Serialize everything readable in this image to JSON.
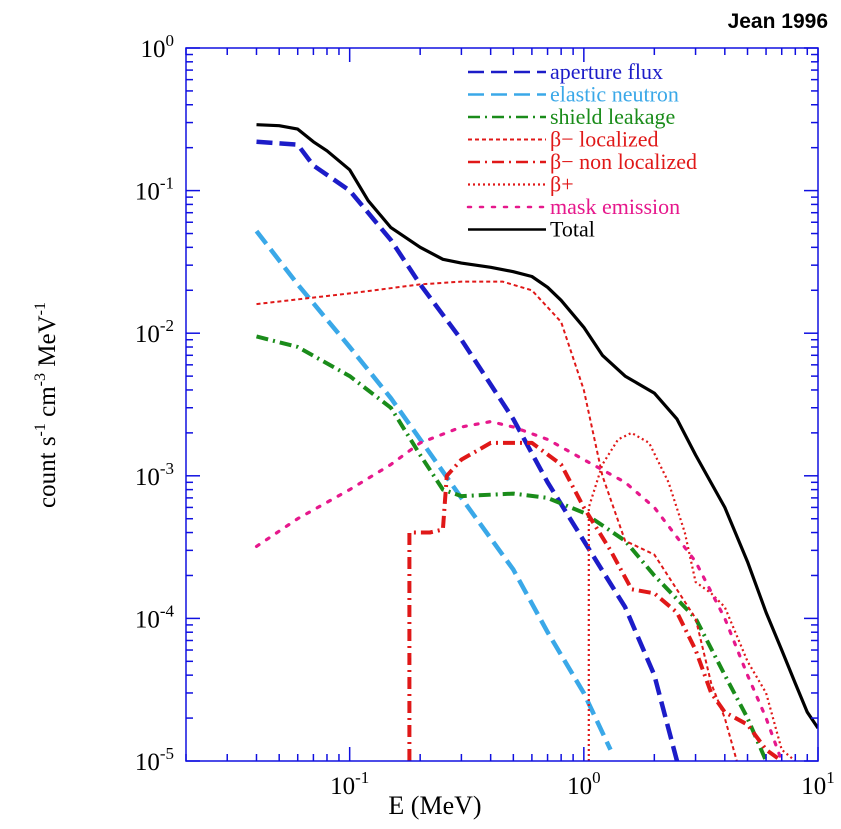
{
  "chart_data": {
    "type": "line",
    "title": "Jean 1996",
    "xlabel": "E (MeV)",
    "ylabel": "count s-1 cm-3 MeV-1",
    "x_scale": "log",
    "y_scale": "log",
    "xlim": [
      0.02,
      10
    ],
    "ylim": [
      1e-05,
      1
    ],
    "x_ticks": [
      {
        "value": 0.1,
        "base": "10",
        "exp": "-1"
      },
      {
        "value": 1,
        "base": "10",
        "exp": "0"
      },
      {
        "value": 10,
        "base": "10",
        "exp": "1"
      }
    ],
    "y_ticks": [
      {
        "value": 1,
        "base": "10",
        "exp": "0"
      },
      {
        "value": 0.1,
        "base": "10",
        "exp": "-1"
      },
      {
        "value": 0.01,
        "base": "10",
        "exp": "-2"
      },
      {
        "value": 0.001,
        "base": "10",
        "exp": "-3"
      },
      {
        "value": 0.0001,
        "base": "10",
        "exp": "-4"
      },
      {
        "value": 1e-05,
        "base": "10",
        "exp": "-5"
      }
    ],
    "grid": false,
    "legend_position": "top-right",
    "series": [
      {
        "name": "aperture flux",
        "color": "#1c1cc8",
        "dash": "long-dash",
        "points": [
          [
            0.04,
            0.22
          ],
          [
            0.06,
            0.21
          ],
          [
            0.07,
            0.15
          ],
          [
            0.1,
            0.1
          ],
          [
            0.15,
            0.045
          ],
          [
            0.2,
            0.022
          ],
          [
            0.3,
            0.009
          ],
          [
            0.5,
            0.0025
          ],
          [
            0.7,
            0.0009
          ],
          [
            1.0,
            0.00035
          ],
          [
            1.5,
            0.00012
          ],
          [
            2.0,
            4e-05
          ],
          [
            2.5,
            1e-05
          ]
        ]
      },
      {
        "name": "elastic neutron",
        "color": "#3aa8e8",
        "dash": "long-dash",
        "points": [
          [
            0.04,
            0.052
          ],
          [
            0.06,
            0.022
          ],
          [
            0.1,
            0.008
          ],
          [
            0.15,
            0.0035
          ],
          [
            0.2,
            0.0018
          ],
          [
            0.3,
            0.0007
          ],
          [
            0.5,
            0.00022
          ],
          [
            0.7,
            8e-05
          ],
          [
            1.0,
            3e-05
          ],
          [
            1.3,
            1.2e-05
          ]
        ]
      },
      {
        "name": "shield leakage",
        "color": "#1a8c1a",
        "dash": "dash-dot",
        "points": [
          [
            0.04,
            0.0095
          ],
          [
            0.06,
            0.008
          ],
          [
            0.1,
            0.005
          ],
          [
            0.15,
            0.003
          ],
          [
            0.2,
            0.0014
          ],
          [
            0.25,
            0.0008
          ],
          [
            0.3,
            0.00072
          ],
          [
            0.5,
            0.00075
          ],
          [
            0.7,
            0.0007
          ],
          [
            1.0,
            0.00055
          ],
          [
            1.5,
            0.00035
          ],
          [
            2.0,
            0.0002
          ],
          [
            3.0,
            0.0001
          ],
          [
            4.0,
            4e-05
          ],
          [
            5.0,
            2e-05
          ],
          [
            6.0,
            1e-05
          ]
        ]
      },
      {
        "name": "β− localized",
        "color": "#e01818",
        "dash": "short-dash",
        "points": [
          [
            0.04,
            0.016
          ],
          [
            0.1,
            0.019
          ],
          [
            0.2,
            0.022
          ],
          [
            0.3,
            0.023
          ],
          [
            0.45,
            0.023
          ],
          [
            0.6,
            0.02
          ],
          [
            0.8,
            0.012
          ],
          [
            1.0,
            0.004
          ],
          [
            1.2,
            0.001
          ],
          [
            1.5,
            0.00035
          ],
          [
            2.0,
            0.00028
          ],
          [
            3.0,
            0.0001
          ],
          [
            3.5,
            3.5e-05
          ],
          [
            4.0,
            2e-05
          ],
          [
            4.5,
            1e-05
          ]
        ]
      },
      {
        "name": "β− non localized",
        "color": "#e01818",
        "dash": "dash-dot",
        "points": [
          [
            0.18,
            1e-05
          ],
          [
            0.18,
            0.0004
          ],
          [
            0.22,
            0.0004
          ],
          [
            0.25,
            0.00042
          ],
          [
            0.26,
            0.001
          ],
          [
            0.3,
            0.0013
          ],
          [
            0.35,
            0.0015
          ],
          [
            0.4,
            0.0017
          ],
          [
            0.6,
            0.0017
          ],
          [
            0.8,
            0.0012
          ],
          [
            1.0,
            0.0006
          ],
          [
            1.3,
            0.0003
          ],
          [
            1.6,
            0.00016
          ],
          [
            2.0,
            0.00015
          ],
          [
            2.5,
            0.00011
          ],
          [
            3.0,
            6e-05
          ],
          [
            3.5,
            3e-05
          ],
          [
            4.0,
            2.2e-05
          ],
          [
            5.0,
            1.8e-05
          ],
          [
            6.0,
            1.2e-05
          ],
          [
            7.0,
            1e-05
          ]
        ]
      },
      {
        "name": "β+",
        "color": "#e01818",
        "dash": "dotted",
        "points": [
          [
            1.05,
            1e-05
          ],
          [
            1.05,
            0.0006
          ],
          [
            1.2,
            0.0012
          ],
          [
            1.4,
            0.0018
          ],
          [
            1.6,
            0.002
          ],
          [
            1.9,
            0.0017
          ],
          [
            2.3,
            0.0009
          ],
          [
            2.7,
            0.0004
          ],
          [
            3.0,
            0.00018
          ],
          [
            3.5,
            0.00015
          ],
          [
            4.0,
            0.00012
          ],
          [
            5.0,
            5e-05
          ],
          [
            6.0,
            3e-05
          ],
          [
            7.0,
            1.2e-05
          ],
          [
            8.0,
            1e-05
          ]
        ]
      },
      {
        "name": "mask emission",
        "color": "#e6188c",
        "dash": "sparse-dot",
        "points": [
          [
            0.04,
            0.00032
          ],
          [
            0.06,
            0.0005
          ],
          [
            0.1,
            0.0008
          ],
          [
            0.15,
            0.0012
          ],
          [
            0.2,
            0.0017
          ],
          [
            0.3,
            0.0022
          ],
          [
            0.4,
            0.0024
          ],
          [
            0.5,
            0.0022
          ],
          [
            0.7,
            0.0018
          ],
          [
            1.0,
            0.0013
          ],
          [
            1.5,
            0.0009
          ],
          [
            2.0,
            0.0006
          ],
          [
            3.0,
            0.00025
          ],
          [
            4.0,
            0.0001
          ],
          [
            5.0,
            4e-05
          ],
          [
            6.0,
            2e-05
          ],
          [
            7.0,
            1e-05
          ]
        ]
      },
      {
        "name": "Total",
        "color": "#000000",
        "dash": "solid",
        "points": [
          [
            0.04,
            0.29
          ],
          [
            0.05,
            0.285
          ],
          [
            0.06,
            0.27
          ],
          [
            0.07,
            0.22
          ],
          [
            0.08,
            0.19
          ],
          [
            0.1,
            0.14
          ],
          [
            0.12,
            0.085
          ],
          [
            0.15,
            0.055
          ],
          [
            0.2,
            0.04
          ],
          [
            0.25,
            0.033
          ],
          [
            0.3,
            0.031
          ],
          [
            0.4,
            0.029
          ],
          [
            0.5,
            0.027
          ],
          [
            0.6,
            0.025
          ],
          [
            0.7,
            0.021
          ],
          [
            0.8,
            0.017
          ],
          [
            1.0,
            0.011
          ],
          [
            1.2,
            0.007
          ],
          [
            1.5,
            0.005
          ],
          [
            2.0,
            0.0038
          ],
          [
            2.5,
            0.0025
          ],
          [
            3.0,
            0.0014
          ],
          [
            4.0,
            0.0006
          ],
          [
            5.0,
            0.00025
          ],
          [
            6.0,
            0.00011
          ],
          [
            7.0,
            6e-05
          ],
          [
            8.0,
            3.5e-05
          ],
          [
            9.0,
            2.2e-05
          ],
          [
            10.0,
            1.7e-05
          ]
        ]
      }
    ]
  }
}
